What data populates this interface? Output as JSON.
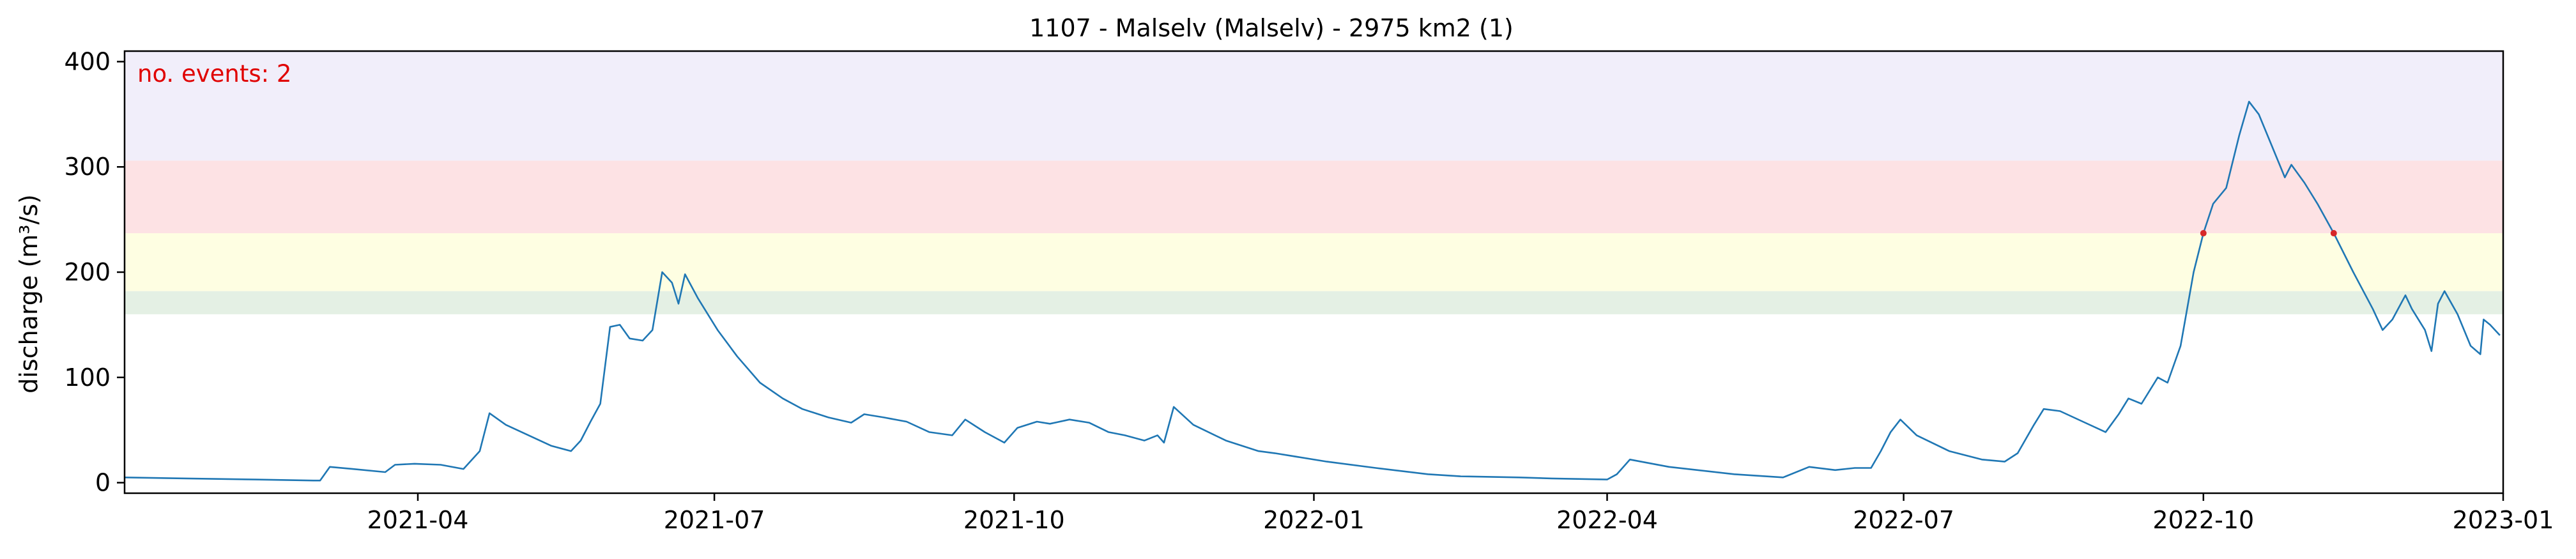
{
  "chart_data": {
    "type": "line",
    "title": "1107 - Malselv (Malselv) - 2975 km2 (1)",
    "xlabel": "",
    "ylabel": "discharge (m³/s)",
    "annotation": "no. events: 2",
    "xlim": [
      "2021-01-01",
      "2023-01-01"
    ],
    "ylim": [
      -10,
      410
    ],
    "x_ticks": [
      "2021-04",
      "2021-07",
      "2021-10",
      "2022-01",
      "2022-04",
      "2022-07",
      "2022-10",
      "2023-01"
    ],
    "y_ticks": [
      0,
      100,
      200,
      300,
      400
    ],
    "grid": false,
    "threshold_bands": [
      {
        "from": 160,
        "to": 182,
        "color": "#e4f0e4"
      },
      {
        "from": 182,
        "to": 237,
        "color": "#fefee2"
      },
      {
        "from": 237,
        "to": 306,
        "color": "#fde2e4"
      },
      {
        "from": 306,
        "to": 410,
        "color": "#f1eefa"
      }
    ],
    "line_color": "#1f77b4",
    "event_color": "#d62728",
    "annotation_color": "#e00000",
    "series": [
      {
        "points": [
          [
            "2021-01-01",
            5
          ],
          [
            "2021-01-20",
            4
          ],
          [
            "2021-02-10",
            3
          ],
          [
            "2021-02-28",
            2
          ],
          [
            "2021-03-02",
            2
          ],
          [
            "2021-03-05",
            15
          ],
          [
            "2021-03-12",
            13
          ],
          [
            "2021-03-22",
            10
          ],
          [
            "2021-03-25",
            17
          ],
          [
            "2021-03-31",
            18
          ],
          [
            "2021-04-08",
            17
          ],
          [
            "2021-04-15",
            13
          ],
          [
            "2021-04-20",
            30
          ],
          [
            "2021-04-23",
            66
          ],
          [
            "2021-04-28",
            55
          ],
          [
            "2021-05-05",
            45
          ],
          [
            "2021-05-12",
            35
          ],
          [
            "2021-05-18",
            30
          ],
          [
            "2021-05-21",
            40
          ],
          [
            "2021-05-24",
            58
          ],
          [
            "2021-05-27",
            75
          ],
          [
            "2021-05-30",
            148
          ],
          [
            "2021-06-02",
            150
          ],
          [
            "2021-06-05",
            137
          ],
          [
            "2021-06-09",
            135
          ],
          [
            "2021-06-12",
            145
          ],
          [
            "2021-06-15",
            200
          ],
          [
            "2021-06-18",
            190
          ],
          [
            "2021-06-20",
            170
          ],
          [
            "2021-06-22",
            198
          ],
          [
            "2021-06-26",
            175
          ],
          [
            "2021-07-02",
            145
          ],
          [
            "2021-07-08",
            120
          ],
          [
            "2021-07-15",
            95
          ],
          [
            "2021-07-22",
            80
          ],
          [
            "2021-07-28",
            70
          ],
          [
            "2021-08-05",
            62
          ],
          [
            "2021-08-12",
            57
          ],
          [
            "2021-08-16",
            65
          ],
          [
            "2021-08-22",
            62
          ],
          [
            "2021-08-29",
            58
          ],
          [
            "2021-09-05",
            48
          ],
          [
            "2021-09-12",
            45
          ],
          [
            "2021-09-16",
            60
          ],
          [
            "2021-09-22",
            48
          ],
          [
            "2021-09-28",
            38
          ],
          [
            "2021-10-02",
            52
          ],
          [
            "2021-10-08",
            58
          ],
          [
            "2021-10-12",
            56
          ],
          [
            "2021-10-18",
            60
          ],
          [
            "2021-10-24",
            57
          ],
          [
            "2021-10-30",
            48
          ],
          [
            "2021-11-04",
            45
          ],
          [
            "2021-11-10",
            40
          ],
          [
            "2021-11-14",
            45
          ],
          [
            "2021-11-16",
            38
          ],
          [
            "2021-11-19",
            72
          ],
          [
            "2021-11-25",
            55
          ],
          [
            "2021-12-05",
            40
          ],
          [
            "2021-12-15",
            30
          ],
          [
            "2021-12-20",
            28
          ],
          [
            "2022-01-05",
            20
          ],
          [
            "2022-01-20",
            14
          ],
          [
            "2022-02-05",
            8
          ],
          [
            "2022-02-15",
            6
          ],
          [
            "2022-03-05",
            5
          ],
          [
            "2022-03-15",
            4
          ],
          [
            "2022-04-01",
            3
          ],
          [
            "2022-04-04",
            8
          ],
          [
            "2022-04-08",
            22
          ],
          [
            "2022-04-20",
            15
          ],
          [
            "2022-05-10",
            8
          ],
          [
            "2022-05-25",
            5
          ],
          [
            "2022-06-02",
            15
          ],
          [
            "2022-06-10",
            12
          ],
          [
            "2022-06-16",
            14
          ],
          [
            "2022-06-21",
            14
          ],
          [
            "2022-06-24",
            30
          ],
          [
            "2022-06-27",
            48
          ],
          [
            "2022-06-30",
            60
          ],
          [
            "2022-07-05",
            45
          ],
          [
            "2022-07-15",
            30
          ],
          [
            "2022-07-25",
            22
          ],
          [
            "2022-08-01",
            20
          ],
          [
            "2022-08-05",
            28
          ],
          [
            "2022-08-10",
            55
          ],
          [
            "2022-08-13",
            70
          ],
          [
            "2022-08-18",
            68
          ],
          [
            "2022-08-25",
            58
          ],
          [
            "2022-09-01",
            48
          ],
          [
            "2022-09-05",
            65
          ],
          [
            "2022-09-08",
            80
          ],
          [
            "2022-09-12",
            75
          ],
          [
            "2022-09-17",
            100
          ],
          [
            "2022-09-20",
            95
          ],
          [
            "2022-09-24",
            130
          ],
          [
            "2022-09-28",
            200
          ],
          [
            "2022-10-01",
            237
          ],
          [
            "2022-10-04",
            265
          ],
          [
            "2022-10-08",
            280
          ],
          [
            "2022-10-12",
            330
          ],
          [
            "2022-10-15",
            362
          ],
          [
            "2022-10-18",
            350
          ],
          [
            "2022-10-22",
            320
          ],
          [
            "2022-10-26",
            290
          ],
          [
            "2022-10-28",
            302
          ],
          [
            "2022-11-01",
            285
          ],
          [
            "2022-11-05",
            265
          ],
          [
            "2022-11-10",
            237
          ],
          [
            "2022-11-16",
            200
          ],
          [
            "2022-11-22",
            165
          ],
          [
            "2022-11-25",
            145
          ],
          [
            "2022-11-28",
            155
          ],
          [
            "2022-12-02",
            178
          ],
          [
            "2022-12-04",
            165
          ],
          [
            "2022-12-08",
            145
          ],
          [
            "2022-12-10",
            125
          ],
          [
            "2022-12-12",
            170
          ],
          [
            "2022-12-14",
            182
          ],
          [
            "2022-12-18",
            160
          ],
          [
            "2022-12-22",
            130
          ],
          [
            "2022-12-25",
            122
          ],
          [
            "2022-12-26",
            155
          ],
          [
            "2022-12-28",
            150
          ],
          [
            "2022-12-31",
            140
          ]
        ]
      }
    ],
    "events": [
      [
        "2022-10-01",
        237
      ],
      [
        "2022-11-10",
        237
      ]
    ]
  }
}
